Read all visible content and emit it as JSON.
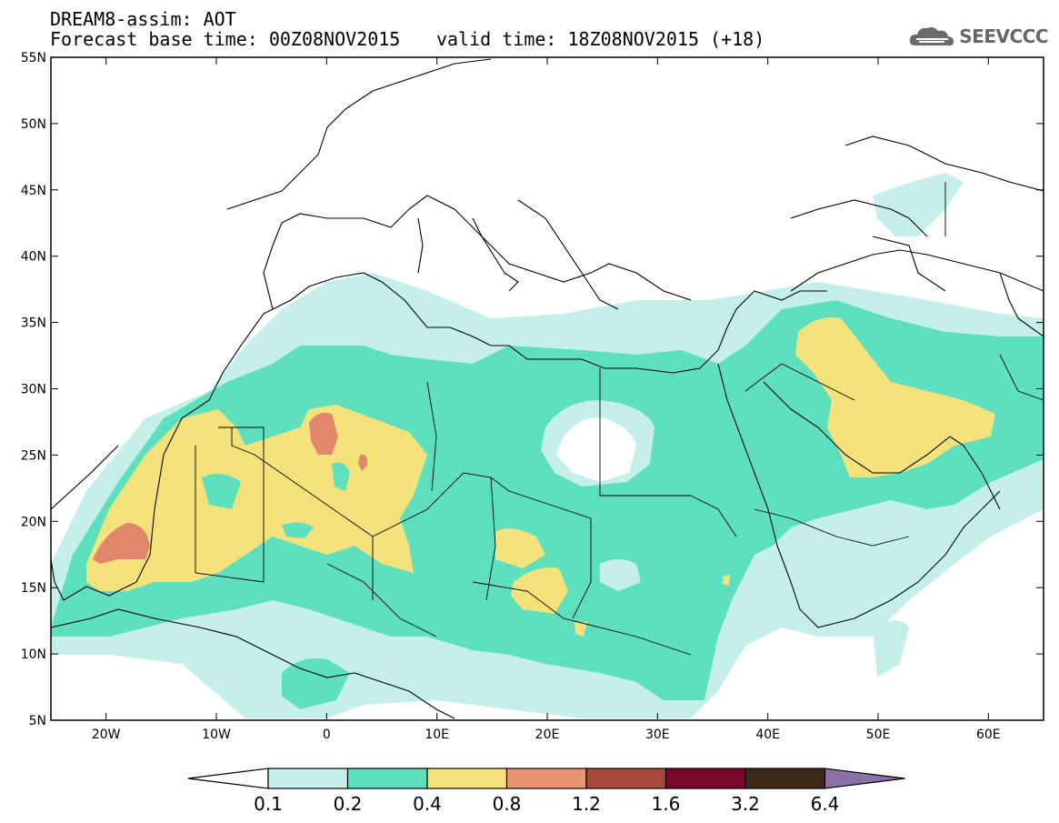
{
  "header": {
    "line1": "DREAM8-assim: AOT",
    "line2": "Forecast base time: 00Z08NOV2015",
    "valid": "valid time: 18Z08NOV2015 (+18)"
  },
  "logo": {
    "text": "SEEVCCC",
    "icon": "cloud-logo-icon"
  },
  "axes": {
    "lat_labels": [
      "55N",
      "50N",
      "45N",
      "40N",
      "35N",
      "30N",
      "25N",
      "20N",
      "15N",
      "10N",
      "5N"
    ],
    "lon_labels": [
      "20W",
      "10W",
      "0",
      "10E",
      "20E",
      "30E",
      "40E",
      "50E",
      "60E"
    ],
    "lat_range": [
      5,
      55
    ],
    "lon_range": [
      -25,
      65
    ]
  },
  "colorbar": {
    "labels": [
      "0.1",
      "0.2",
      "0.4",
      "0.8",
      "1.2",
      "1.6",
      "3.2",
      "6.4"
    ],
    "colors": [
      "#ffffff",
      "#c5f0ea",
      "#5ee0bf",
      "#f4e27a",
      "#ea9372",
      "#a84a3e",
      "#7a0a2a",
      "#3e2818",
      "#8a70a8"
    ]
  },
  "palette": {
    "level1": "#c5f0ea",
    "level2": "#5ee0bf",
    "level3": "#f4e27a",
    "level4": "#e3876c"
  }
}
